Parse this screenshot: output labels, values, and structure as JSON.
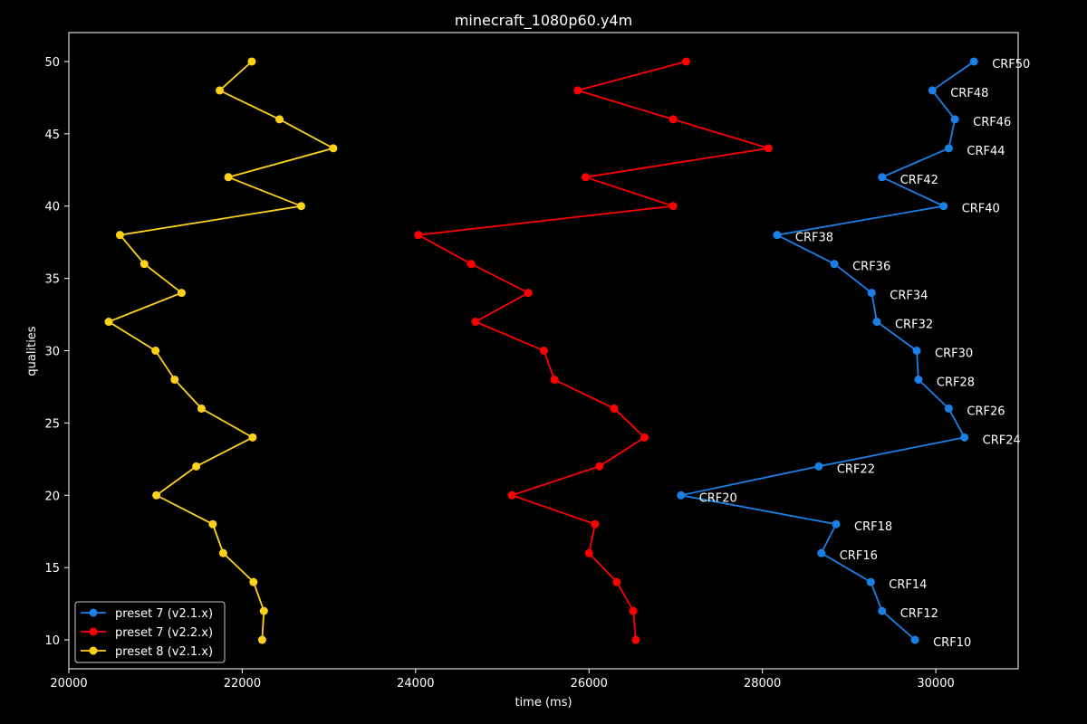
{
  "chart_data": {
    "type": "line",
    "title": "minecraft_1080p60.y4m",
    "xlabel": "time (ms)",
    "ylabel": "qualities",
    "xlim": [
      20000,
      30950
    ],
    "ylim": [
      8,
      52
    ],
    "xticks": [
      20000,
      22000,
      24000,
      26000,
      28000,
      30000
    ],
    "yticks": [
      10,
      15,
      20,
      25,
      30,
      35,
      40,
      45,
      50
    ],
    "grid": false,
    "legend_position": "bottom-left",
    "series": [
      {
        "name": "preset 7 (v2.1.x)",
        "color": "#1a80e6",
        "y": [
          50,
          48,
          46,
          44,
          42,
          40,
          38,
          36,
          34,
          32,
          30,
          28,
          26,
          24,
          22,
          20,
          18,
          16,
          14,
          12,
          10
        ],
        "x": [
          30440,
          29960,
          30220,
          30150,
          29380,
          30090,
          28170,
          28830,
          29260,
          29320,
          29780,
          29800,
          30150,
          30330,
          28650,
          27060,
          28850,
          28680,
          29250,
          29380,
          29760
        ],
        "labels": [
          "CRF50",
          "CRF48",
          "CRF46",
          "CRF44",
          "CRF42",
          "CRF40",
          "CRF38",
          "CRF36",
          "CRF34",
          "CRF32",
          "CRF30",
          "CRF28",
          "CRF26",
          "CRF24",
          "CRF22",
          "CRF20",
          "CRF18",
          "CRF16",
          "CRF14",
          "CRF12",
          "CRF10"
        ]
      },
      {
        "name": "preset 7 (v2.2.x)",
        "color": "#ff0000",
        "y": [
          50,
          48,
          46,
          44,
          42,
          40,
          38,
          36,
          34,
          32,
          30,
          28,
          26,
          24,
          22,
          20,
          18,
          16,
          14,
          12,
          10
        ],
        "x": [
          27120,
          25870,
          26970,
          28070,
          25960,
          26970,
          24030,
          24640,
          25300,
          24690,
          25480,
          25600,
          26290,
          26640,
          26120,
          25110,
          26070,
          26000,
          26320,
          26510,
          26540
        ]
      },
      {
        "name": "preset 8 (v2.1.x)",
        "color": "#ffd21a",
        "y": [
          50,
          48,
          46,
          44,
          42,
          40,
          38,
          36,
          34,
          32,
          30,
          28,
          26,
          24,
          22,
          20,
          18,
          16,
          14,
          12,
          10
        ],
        "x": [
          22110,
          21740,
          22430,
          23050,
          21840,
          22680,
          20590,
          20870,
          21300,
          20460,
          21000,
          21220,
          21530,
          22120,
          21470,
          21010,
          21660,
          21780,
          22130,
          22250,
          22230
        ]
      }
    ]
  }
}
